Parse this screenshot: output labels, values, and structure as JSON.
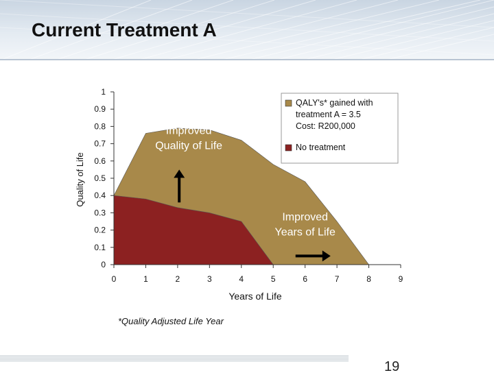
{
  "slide": {
    "title": "Current Treatment A",
    "footnote": "*Quality Adjusted Life Year",
    "page_number": "19"
  },
  "chart_data": {
    "type": "area",
    "xlabel": "Years of Life",
    "ylabel": "Quality of Life",
    "xlim": [
      0,
      9
    ],
    "ylim": [
      0,
      1
    ],
    "x_ticks": [
      "0",
      "1",
      "2",
      "3",
      "4",
      "5",
      "6",
      "7",
      "8",
      "9"
    ],
    "y_ticks": [
      "0",
      "0.1",
      "0.2",
      "0.3",
      "0.4",
      "0.5",
      "0.6",
      "0.7",
      "0.8",
      "0.9",
      "1"
    ],
    "grid": false,
    "legend_position": "top-right",
    "series": [
      {
        "name": "QALY's* gained with treatment A = 3.5 Cost: R200,000",
        "legend_lines": [
          "QALY's* gained with",
          "treatment A = 3.5",
          "Cost: R200,000"
        ],
        "color": "#a8894a",
        "points": [
          [
            0,
            0.4
          ],
          [
            1,
            0.76
          ],
          [
            2,
            0.79
          ],
          [
            3,
            0.78
          ],
          [
            4,
            0.72
          ],
          [
            5,
            0.58
          ],
          [
            6,
            0.48
          ],
          [
            7,
            0.25
          ],
          [
            8,
            0
          ]
        ]
      },
      {
        "name": "No treatment",
        "legend_lines": [
          "No treatment"
        ],
        "color": "#8c2121",
        "points": [
          [
            0,
            0.4
          ],
          [
            1,
            0.38
          ],
          [
            2,
            0.33
          ],
          [
            3,
            0.3
          ],
          [
            4,
            0.25
          ],
          [
            5,
            0
          ]
        ]
      }
    ],
    "annotations": [
      {
        "lines": [
          "Improved",
          "Quality of Life"
        ],
        "color": "#ffffff",
        "x": 2.35,
        "y": 0.7,
        "arrow": "up",
        "arrow_x": 2.05,
        "arrow_from": 0.36,
        "arrow_to": 0.55
      },
      {
        "lines": [
          "Improved",
          "Years of Life"
        ],
        "color": "#ffffff",
        "x": 6.0,
        "y": 0.2,
        "arrow": "right",
        "arrow_y": 0.05,
        "arrow_from": 5.7,
        "arrow_to": 6.8
      }
    ]
  }
}
